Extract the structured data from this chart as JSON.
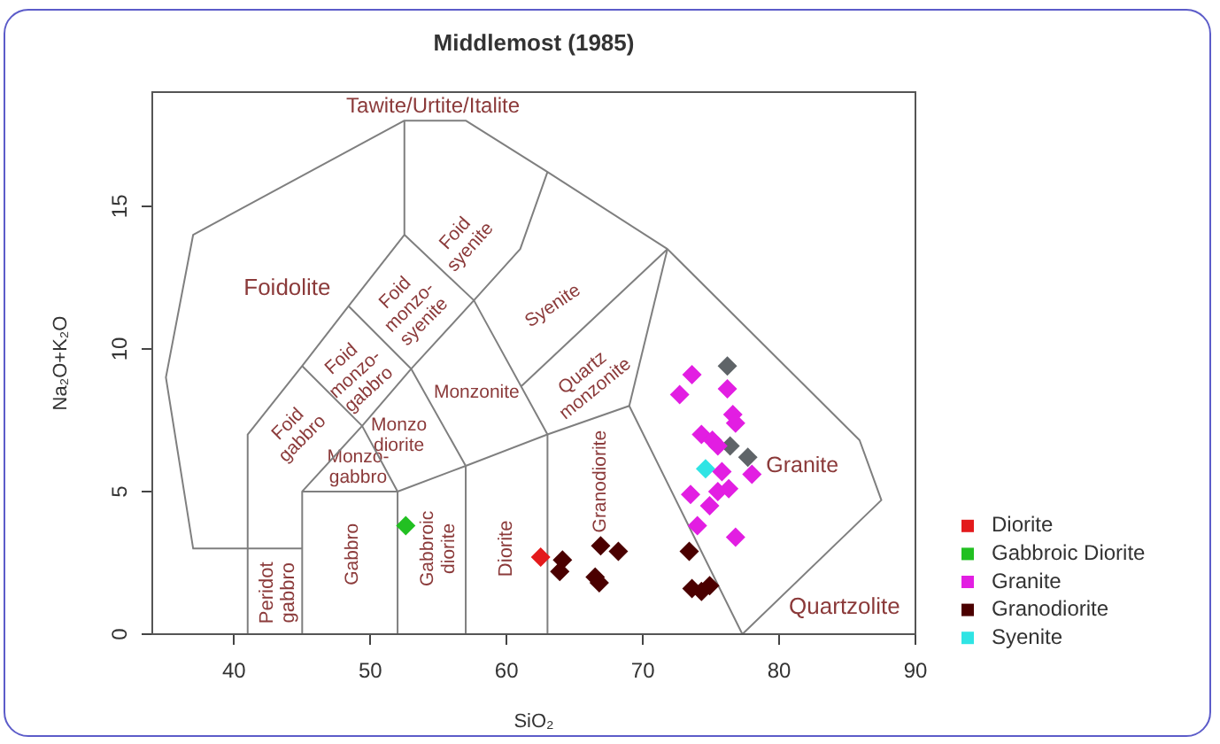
{
  "chart_data": {
    "type": "scatter",
    "title": "Middlemost (1985)",
    "xlabel": "SiO₂",
    "ylabel": "Na₂O+K₂O",
    "xlim": [
      34,
      90
    ],
    "ylim": [
      0,
      19
    ],
    "xticks": [
      40,
      50,
      60,
      70,
      80,
      90
    ],
    "yticks": [
      0,
      5,
      10,
      15
    ],
    "marker": "diamond",
    "legend": "bottom right",
    "series": [
      {
        "type": "line",
        "marker": "none",
        "color": "#7f7f7f",
        "x": [
          41,
          41,
          45,
          48.4,
          52.5,
          52.5
        ],
        "values": [
          0,
          7,
          9.4,
          11.5,
          14,
          18
        ]
      },
      {
        "type": "line",
        "marker": "none",
        "color": "#7f7f7f",
        "x": [
          45,
          37,
          35,
          37,
          52.5,
          57,
          63,
          71.8,
          85.9,
          87.5,
          77.3
        ],
        "values": [
          3,
          3,
          9,
          14,
          18,
          18,
          16.2,
          13.5,
          6.8,
          4.7,
          0
        ]
      },
      {
        "type": "line",
        "marker": "none",
        "color": "#7f7f7f",
        "x": [
          45,
          45,
          52,
          57,
          63,
          69,
          77.3
        ],
        "values": [
          0,
          5,
          5,
          5.9,
          7,
          8,
          0
        ]
      },
      {
        "type": "line",
        "marker": "none",
        "color": "#7f7f7f",
        "x": [
          52,
          52
        ],
        "values": [
          0,
          5
        ]
      },
      {
        "type": "line",
        "marker": "none",
        "color": "#7f7f7f",
        "x": [
          57,
          57
        ],
        "values": [
          0,
          5.9
        ]
      },
      {
        "type": "line",
        "marker": "none",
        "color": "#7f7f7f",
        "x": [
          63,
          63
        ],
        "values": [
          0,
          7
        ]
      },
      {
        "type": "line",
        "marker": "none",
        "color": "#7f7f7f",
        "x": [
          45,
          49.4,
          52
        ],
        "values": [
          5,
          7.3,
          5
        ]
      },
      {
        "type": "line",
        "marker": "none",
        "color": "#7f7f7f",
        "x": [
          45,
          49.4,
          53,
          57
        ],
        "values": [
          9.4,
          7.3,
          9.3,
          5.9
        ]
      },
      {
        "type": "line",
        "marker": "none",
        "color": "#7f7f7f",
        "x": [
          48.4,
          53,
          57.6,
          63
        ],
        "values": [
          11.5,
          9.3,
          11.7,
          7
        ]
      },
      {
        "type": "line",
        "marker": "none",
        "color": "#7f7f7f",
        "x": [
          52.5,
          57.6,
          61,
          63
        ],
        "values": [
          14,
          11.7,
          13.5,
          16.2
        ]
      },
      {
        "type": "line",
        "marker": "none",
        "color": "#7f7f7f",
        "x": [
          69,
          71.8
        ],
        "values": [
          8,
          13.5
        ]
      },
      {
        "type": "line",
        "marker": "none",
        "color": "#7f7f7f",
        "x": [
          61.1,
          71.8
        ],
        "values": [
          8.7,
          13.5
        ]
      },
      {
        "name": "Diorite",
        "color": "#e31a1c",
        "x": [
          62.5
        ],
        "values": [
          2.7
        ]
      },
      {
        "name": "Gabbroic Diorite",
        "color": "#22c022",
        "x": [
          52.6
        ],
        "values": [
          3.8
        ]
      },
      {
        "name": "Granite",
        "color": "#e21ee2",
        "x": [
          73.6,
          72.7,
          76.2,
          76.6,
          76.8,
          74.3,
          75.1,
          75.5,
          75.8,
          78.0,
          73.5,
          75.5,
          76.3,
          74.9,
          74.0,
          76.8
        ],
        "values": [
          9.1,
          8.4,
          8.6,
          7.7,
          7.4,
          7.0,
          6.8,
          6.6,
          5.7,
          5.6,
          4.9,
          5.0,
          5.1,
          4.5,
          3.8,
          3.4
        ]
      },
      {
        "name": "Granodiorite",
        "color": "#4b0000",
        "x": [
          64.1,
          63.9,
          66.5,
          66.8,
          66.9,
          68.2,
          73.4,
          73.6,
          74.3,
          74.9
        ],
        "values": [
          2.6,
          2.2,
          2.0,
          1.8,
          3.1,
          2.9,
          2.9,
          1.6,
          1.5,
          1.7
        ]
      },
      {
        "name": "Syenite",
        "color": "#2fe4e4",
        "x": [
          74.6
        ],
        "values": [
          5.8
        ]
      },
      {
        "color": "#5f6468",
        "x": [
          76.2,
          76.4,
          77.7
        ],
        "values": [
          9.4,
          6.6,
          6.2
        ]
      }
    ],
    "annotations": [
      "Tawite/Urtite/Italite",
      "Foidolite",
      "Foid syenite",
      "Foid monzo-syenite",
      "Foid monzo-gabbro",
      "Foid gabbro",
      "Syenite",
      "Quartz monzonite",
      "Monzonite",
      "Monzo diorite",
      "Monzo-gabbro",
      "Peridot gabbro",
      "Gabbro",
      "Gabbroic diorite",
      "Diorite",
      "Granodiorite",
      "Granite",
      "Quartzolite"
    ]
  }
}
